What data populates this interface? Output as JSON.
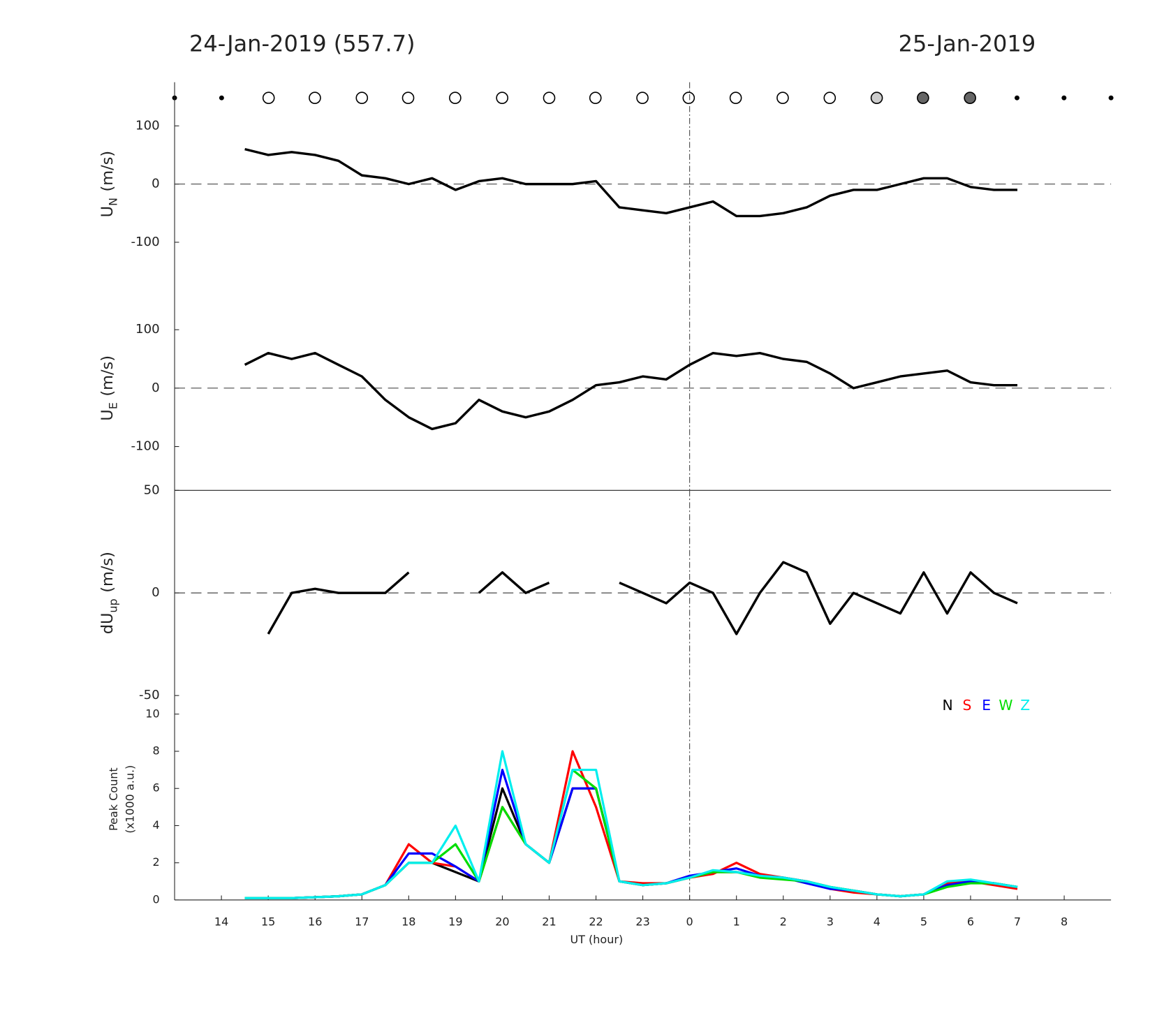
{
  "chart_data": [
    {
      "type": "line",
      "title_left": "24-Jan-2019 (557.7)",
      "title_right": "25-Jan-2019",
      "ylabel": {
        "main": "U",
        "sub": "N",
        "unit": "(m/s)"
      },
      "xlim": [
        13,
        33
      ],
      "ylim": [
        -175,
        175
      ],
      "yticks": [
        -100,
        0,
        100
      ],
      "zero_line": true,
      "vline": 24,
      "color": "#000000",
      "x": [
        14.5,
        15,
        15.5,
        16,
        16.5,
        17,
        17.5,
        18,
        18.5,
        19,
        19.5,
        20,
        20.5,
        21,
        21.5,
        22,
        22.5,
        23,
        23.5,
        24,
        24.5,
        25,
        25.5,
        26,
        26.5,
        27,
        27.5,
        28,
        28.5,
        29,
        29.5,
        30,
        30.5,
        31
      ],
      "values": [
        60,
        50,
        55,
        50,
        40,
        15,
        10,
        0,
        10,
        -10,
        5,
        10,
        0,
        0,
        0,
        5,
        -40,
        -45,
        -50,
        -40,
        -30,
        -55,
        -55,
        -50,
        -40,
        -20,
        -10,
        -10,
        0,
        10,
        10,
        -5,
        -10,
        -10
      ]
    },
    {
      "type": "line",
      "ylabel": {
        "main": "U",
        "sub": "E",
        "unit": "(m/s)"
      },
      "xlim": [
        13,
        33
      ],
      "ylim": [
        -175,
        175
      ],
      "yticks": [
        -100,
        0,
        100
      ],
      "zero_line": true,
      "vline": 24,
      "color": "#000000",
      "x": [
        14.5,
        15,
        15.5,
        16,
        16.5,
        17,
        17.5,
        18,
        18.5,
        19,
        19.5,
        20,
        20.5,
        21,
        21.5,
        22,
        22.5,
        23,
        23.5,
        24,
        24.5,
        25,
        25.5,
        26,
        26.5,
        27,
        27.5,
        28,
        28.5,
        29,
        29.5,
        30,
        30.5,
        31
      ],
      "values": [
        40,
        60,
        50,
        60,
        40,
        20,
        -20,
        -50,
        -70,
        -60,
        -20,
        -40,
        -50,
        -40,
        -20,
        5,
        10,
        20,
        15,
        40,
        60,
        55,
        60,
        50,
        45,
        25,
        0,
        10,
        20,
        25,
        30,
        10,
        5,
        5
      ]
    },
    {
      "type": "line",
      "ylabel": {
        "main": "dU",
        "sub": "up",
        "unit": "(m/s)"
      },
      "xlim": [
        13,
        33
      ],
      "ylim": [
        -50,
        50
      ],
      "yticks": [
        -50,
        0,
        50
      ],
      "zero_line": true,
      "vline": 24,
      "color": "#000000",
      "x": [
        14.5,
        15,
        15.5,
        16,
        16.5,
        17,
        17.5,
        18,
        18.5,
        19,
        19.5,
        20,
        20.5,
        21,
        21.5,
        22,
        22.5,
        23,
        23.5,
        24,
        24.5,
        25,
        25.5,
        26,
        26.5,
        27,
        27.5,
        28,
        28.5,
        29,
        29.5,
        30,
        30.5,
        31
      ],
      "values": [
        null,
        -20,
        0,
        2,
        0,
        0,
        0,
        10,
        null,
        null,
        0,
        10,
        0,
        5,
        null,
        null,
        5,
        0,
        -5,
        5,
        0,
        -20,
        0,
        15,
        10,
        -15,
        0,
        -5,
        -10,
        10,
        -10,
        10,
        0,
        -5
      ]
    },
    {
      "type": "line",
      "ylabel": [
        "Peak Count",
        "(x1000 a.u.)"
      ],
      "xlabel": "UT (hour)",
      "xlim": [
        13,
        33
      ],
      "ylim": [
        0,
        11
      ],
      "yticks": [
        0,
        2,
        4,
        6,
        8,
        10
      ],
      "vline": 24,
      "xticks": [
        14,
        15,
        16,
        17,
        18,
        19,
        20,
        21,
        22,
        23,
        {
          "value": 24,
          "label": "0"
        },
        {
          "value": 25,
          "label": "1"
        },
        {
          "value": 26,
          "label": "2"
        },
        {
          "value": 27,
          "label": "3"
        },
        {
          "value": 28,
          "label": "4"
        },
        {
          "value": 29,
          "label": "5"
        },
        {
          "value": 30,
          "label": "6"
        },
        {
          "value": 31,
          "label": "7"
        },
        {
          "value": 32,
          "label": "8"
        }
      ],
      "x": [
        14.5,
        15,
        15.5,
        16,
        16.5,
        17,
        17.5,
        18,
        18.5,
        19,
        19.5,
        20,
        20.5,
        21,
        21.5,
        22,
        22.5,
        23,
        23.5,
        24,
        24.5,
        25,
        25.5,
        26,
        26.5,
        27,
        27.5,
        28,
        28.5,
        29,
        29.5,
        30,
        30.5,
        31
      ],
      "series": [
        {
          "name": "N",
          "color": "#000000",
          "values": [
            0.1,
            0.1,
            0.1,
            0.15,
            0.2,
            0.3,
            0.8,
            2,
            2,
            1.5,
            1,
            6,
            3,
            2,
            6,
            6,
            1,
            0.8,
            0.9,
            1.2,
            1.5,
            1.5,
            1.3,
            1.2,
            1,
            0.7,
            0.5,
            0.3,
            0.2,
            0.3,
            0.8,
            1.0,
            0.9,
            0.7
          ]
        },
        {
          "name": "S",
          "color": "#ff0000",
          "values": [
            0.1,
            0.1,
            0.1,
            0.15,
            0.2,
            0.3,
            0.8,
            3,
            2,
            1.8,
            1,
            5,
            3,
            2,
            8,
            5,
            1,
            0.9,
            0.9,
            1.2,
            1.4,
            2,
            1.4,
            1.2,
            1,
            0.6,
            0.4,
            0.3,
            0.2,
            0.3,
            0.9,
            1.0,
            0.8,
            0.6
          ]
        },
        {
          "name": "E",
          "color": "#0000ff",
          "values": [
            0.1,
            0.1,
            0.1,
            0.15,
            0.2,
            0.3,
            0.8,
            2.5,
            2.5,
            1.8,
            1,
            7,
            3,
            2,
            6,
            6,
            1,
            0.8,
            0.9,
            1.3,
            1.5,
            1.7,
            1.3,
            1.2,
            0.9,
            0.6,
            0.5,
            0.3,
            0.2,
            0.3,
            0.8,
            1.0,
            0.9,
            0.7
          ]
        },
        {
          "name": "W",
          "color": "#00dd00",
          "values": [
            0.1,
            0.1,
            0.1,
            0.15,
            0.2,
            0.3,
            0.8,
            2,
            2,
            3,
            1,
            5,
            3,
            2,
            7,
            6,
            1,
            0.8,
            0.9,
            1.2,
            1.5,
            1.5,
            1.2,
            1.1,
            1,
            0.7,
            0.5,
            0.3,
            0.2,
            0.3,
            0.7,
            0.9,
            0.9,
            0.7
          ]
        },
        {
          "name": "Z",
          "color": "#00eeee",
          "values": [
            0.1,
            0.1,
            0.1,
            0.15,
            0.2,
            0.3,
            0.8,
            2,
            2,
            4,
            1,
            8,
            3,
            2,
            7,
            7,
            1,
            0.8,
            0.9,
            1.2,
            1.6,
            1.5,
            1.3,
            1.2,
            1,
            0.7,
            0.5,
            0.3,
            0.2,
            0.3,
            1.0,
            1.1,
            0.9,
            0.7
          ]
        }
      ]
    }
  ]
}
